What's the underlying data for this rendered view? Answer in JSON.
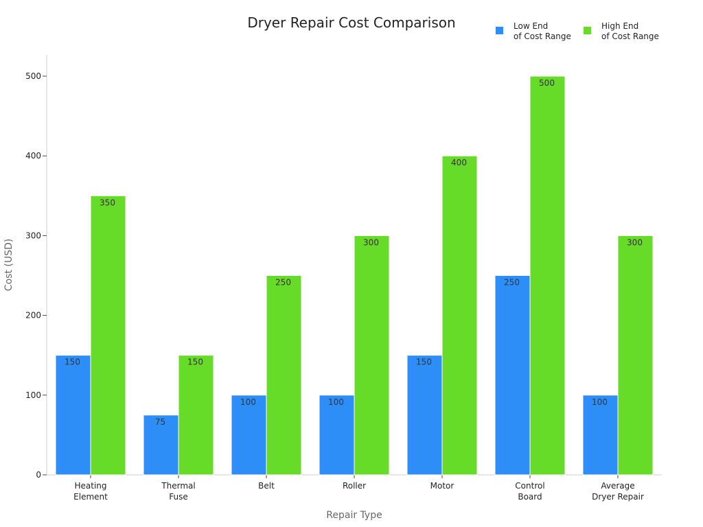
{
  "chart_data": {
    "type": "bar",
    "title": "Dryer Repair Cost Comparison",
    "xlabel": "Repair Type",
    "ylabel": "Cost (USD)",
    "ylim": [
      0,
      525
    ],
    "yticks": [
      0,
      100,
      200,
      300,
      400,
      500
    ],
    "grid": false,
    "legend_position": "top-right",
    "categories": [
      [
        "Heating",
        "Element"
      ],
      [
        "Thermal",
        "Fuse"
      ],
      [
        "Belt"
      ],
      [
        "Roller"
      ],
      [
        "Motor"
      ],
      [
        "Control",
        "Board"
      ],
      [
        "Average",
        "Dryer Repair"
      ]
    ],
    "series": [
      {
        "name": "Low End of Cost Range",
        "legend_lines": [
          "Low End",
          "of Cost Range"
        ],
        "color": "#2e8ef7",
        "values": [
          150,
          75,
          100,
          100,
          150,
          250,
          100
        ]
      },
      {
        "name": "High End of Cost Range",
        "legend_lines": [
          "High End",
          "of Cost Range"
        ],
        "color": "#66db28",
        "values": [
          350,
          150,
          250,
          300,
          400,
          500,
          300
        ]
      }
    ]
  }
}
